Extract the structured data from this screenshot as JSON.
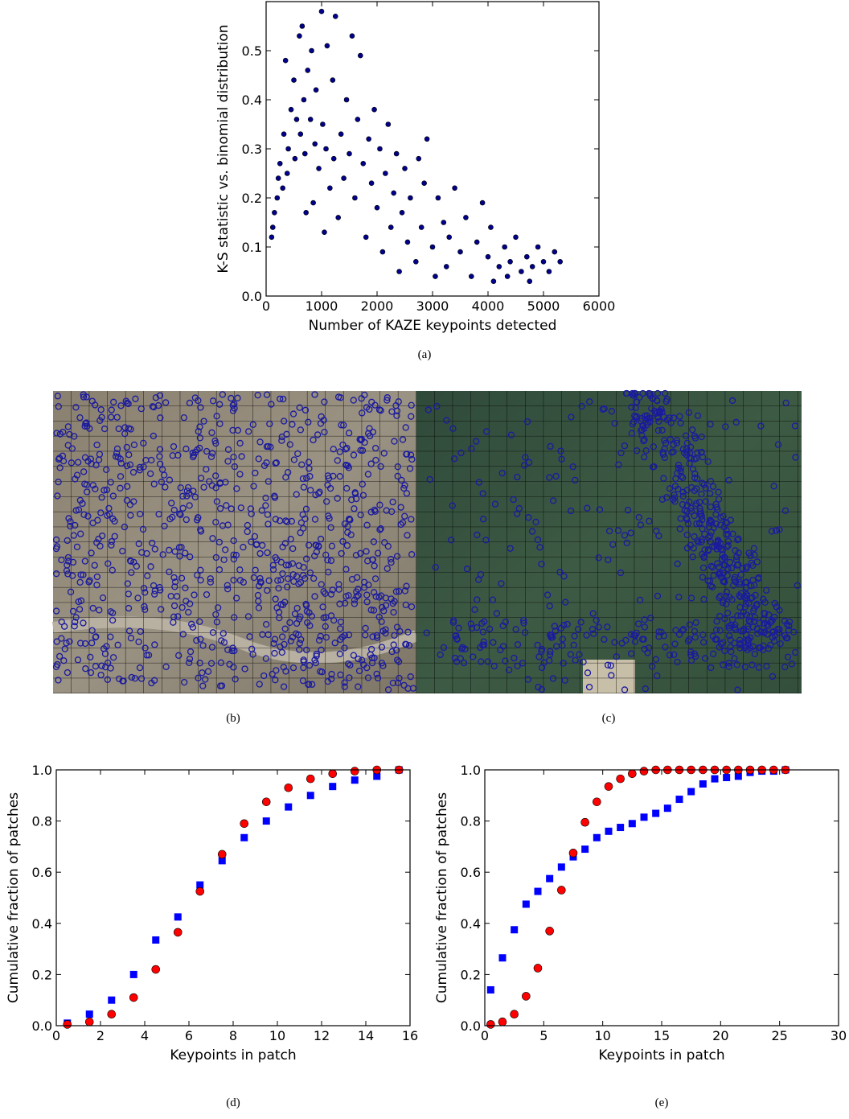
{
  "chart_data": [
    {
      "type": "scatter",
      "xlabel": "Number of KAZE keypoints detected",
      "ylabel": "K-S statistic vs. binomial distribution",
      "xlim": [
        0,
        6000
      ],
      "ylim": [
        0,
        0.6
      ],
      "xticks": [
        0,
        1000,
        2000,
        3000,
        4000,
        5000,
        6000
      ],
      "yticks": [
        {
          "value": 0,
          "label": "0.0"
        },
        0.1,
        0.2,
        0.3,
        0.4,
        0.5
      ],
      "x": [
        100,
        120,
        150,
        200,
        220,
        250,
        300,
        320,
        350,
        380,
        400,
        450,
        500,
        520,
        550,
        600,
        620,
        650,
        680,
        700,
        720,
        750,
        800,
        820,
        850,
        880,
        900,
        950,
        1000,
        1020,
        1050,
        1080,
        1100,
        1150,
        1200,
        1220,
        1250,
        1300,
        1350,
        1400,
        1450,
        1500,
        1550,
        1600,
        1650,
        1700,
        1750,
        1800,
        1850,
        1900,
        1950,
        2000,
        2050,
        2100,
        2150,
        2200,
        2250,
        2300,
        2350,
        2400,
        2450,
        2500,
        2550,
        2600,
        2700,
        2750,
        2800,
        2850,
        2900,
        3000,
        3050,
        3100,
        3200,
        3250,
        3300,
        3400,
        3500,
        3600,
        3700,
        3800,
        3900,
        4000,
        4050,
        4100,
        4200,
        4300,
        4350,
        4400,
        4500,
        4600,
        4700,
        4750,
        4800,
        4900,
        5000,
        5100,
        5200,
        5300
      ],
      "series": [
        {
          "color": "#00008b",
          "marker": "circle",
          "values": [
            0.12,
            0.14,
            0.17,
            0.2,
            0.24,
            0.27,
            0.22,
            0.33,
            0.48,
            0.25,
            0.3,
            0.38,
            0.44,
            0.28,
            0.36,
            0.53,
            0.33,
            0.55,
            0.4,
            0.29,
            0.17,
            0.46,
            0.36,
            0.5,
            0.19,
            0.31,
            0.42,
            0.26,
            0.58,
            0.35,
            0.13,
            0.3,
            0.51,
            0.22,
            0.44,
            0.28,
            0.57,
            0.16,
            0.33,
            0.24,
            0.4,
            0.29,
            0.53,
            0.2,
            0.36,
            0.49,
            0.27,
            0.12,
            0.32,
            0.23,
            0.38,
            0.18,
            0.3,
            0.09,
            0.25,
            0.35,
            0.14,
            0.21,
            0.29,
            0.05,
            0.17,
            0.26,
            0.11,
            0.2,
            0.07,
            0.28,
            0.14,
            0.23,
            0.32,
            0.1,
            0.04,
            0.2,
            0.15,
            0.06,
            0.12,
            0.22,
            0.09,
            0.16,
            0.04,
            0.11,
            0.19,
            0.08,
            0.14,
            0.03,
            0.06,
            0.1,
            0.04,
            0.07,
            0.12,
            0.05,
            0.08,
            0.03,
            0.06,
            0.1,
            0.07,
            0.05,
            0.09,
            0.07
          ]
        }
      ]
    },
    {
      "type": "scatter",
      "xlabel": "Keypoints in patch",
      "ylabel": "Cumulative fraction of patches",
      "xlim": [
        0,
        16
      ],
      "ylim": [
        0,
        1
      ],
      "xticks": [
        0,
        2,
        4,
        6,
        8,
        10,
        12,
        14,
        16
      ],
      "yticks": [
        {
          "value": 0,
          "label": "0.0"
        },
        0.2,
        0.4,
        0.6,
        0.8,
        {
          "value": 1,
          "label": "1.0"
        }
      ],
      "x": [
        0.5,
        1.5,
        2.5,
        3.5,
        4.5,
        5.5,
        6.5,
        7.5,
        8.5,
        9.5,
        10.5,
        11.5,
        12.5,
        13.5,
        14.5,
        15.5
      ],
      "series": [
        {
          "color": "#0000ff",
          "marker": "square",
          "values": [
            0.01,
            0.045,
            0.1,
            0.2,
            0.335,
            0.425,
            0.55,
            0.645,
            0.735,
            0.8,
            0.855,
            0.9,
            0.935,
            0.96,
            0.975,
            1.0
          ]
        },
        {
          "color": "#ff0000",
          "marker": "circle",
          "values": [
            0.005,
            0.015,
            0.045,
            0.11,
            0.22,
            0.365,
            0.525,
            0.67,
            0.79,
            0.875,
            0.93,
            0.965,
            0.985,
            0.995,
            1.0,
            1.0
          ]
        }
      ]
    },
    {
      "type": "scatter",
      "xlabel": "Keypoints in patch",
      "ylabel": "Cumulative fraction of patches",
      "xlim": [
        0,
        30
      ],
      "ylim": [
        0,
        1
      ],
      "xticks": [
        0,
        5,
        10,
        15,
        20,
        25,
        30
      ],
      "yticks": [
        {
          "value": 0,
          "label": "0.0"
        },
        0.2,
        0.4,
        0.6,
        0.8,
        {
          "value": 1,
          "label": "1.0"
        }
      ],
      "x": [
        0.5,
        1.5,
        2.5,
        3.5,
        4.5,
        5.5,
        6.5,
        7.5,
        8.5,
        9.5,
        10.5,
        11.5,
        12.5,
        13.5,
        14.5,
        15.5,
        16.5,
        17.5,
        18.5,
        19.5,
        20.5,
        21.5,
        22.5,
        23.5,
        24.5,
        25.5
      ],
      "series": [
        {
          "color": "#0000ff",
          "marker": "square",
          "values": [
            0.14,
            0.265,
            0.375,
            0.475,
            0.525,
            0.575,
            0.62,
            0.66,
            0.69,
            0.735,
            0.76,
            0.775,
            0.79,
            0.815,
            0.83,
            0.85,
            0.885,
            0.915,
            0.945,
            0.965,
            0.97,
            0.975,
            0.99,
            0.995,
            0.995,
            1.0
          ]
        },
        {
          "color": "#ff0000",
          "marker": "circle",
          "values": [
            0.005,
            0.015,
            0.045,
            0.115,
            0.225,
            0.37,
            0.53,
            0.675,
            0.795,
            0.875,
            0.935,
            0.965,
            0.985,
            0.995,
            1,
            1,
            1,
            1,
            1,
            1,
            1,
            1,
            1,
            1,
            1,
            1
          ]
        }
      ]
    }
  ],
  "captions": [
    "(a)",
    "(b)",
    "(c)",
    "(d)",
    "(e)"
  ]
}
